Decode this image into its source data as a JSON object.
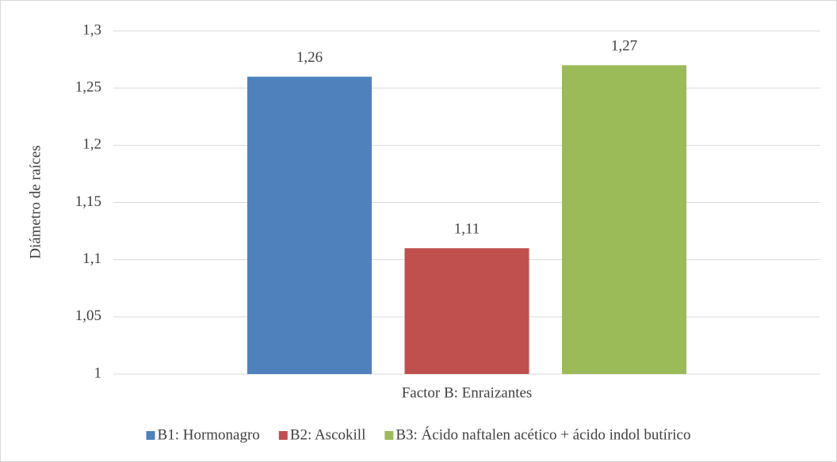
{
  "chart_data": {
    "type": "bar",
    "categories": [
      "Factor B: Enraizantes"
    ],
    "y_label": "Diámetro de raíces",
    "series": [
      {
        "name": "B1: Hormonagro",
        "color": "#4f81bd",
        "values": [
          1.26
        ],
        "value_labels": [
          "1,26"
        ]
      },
      {
        "name": "B2: Ascokill",
        "color": "#c0504d",
        "values": [
          1.11
        ],
        "value_labels": [
          "1,11"
        ]
      },
      {
        "name": "B3: Ácido naftalen acético + ácido indol butírico",
        "color": "#9bbb59",
        "values": [
          1.27
        ],
        "value_labels": [
          "1,27"
        ]
      }
    ],
    "ylim": [
      1,
      1.3
    ],
    "yticks": [
      1,
      {
        "value": 1.05,
        "label": "1,05"
      },
      {
        "value": 1.1,
        "label": "1,1"
      },
      {
        "value": 1.15,
        "label": "1,15"
      },
      {
        "value": 1.2,
        "label": "1,2"
      },
      {
        "value": 1.25,
        "label": "1,25"
      },
      {
        "value": 1.3,
        "label": "1,3"
      }
    ],
    "grid": true,
    "legend": "bottom"
  }
}
